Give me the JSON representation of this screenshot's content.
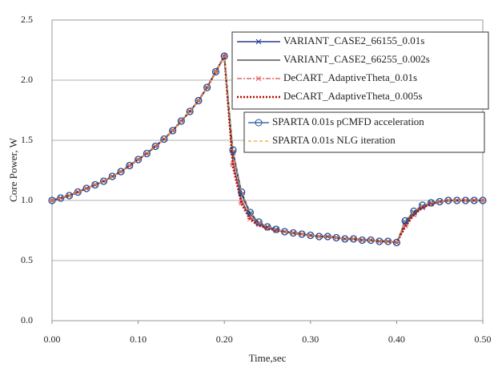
{
  "chart_data": {
    "type": "line",
    "x_label": "Time,sec",
    "y_label": "Core Power, W",
    "xlim": [
      0,
      0.5
    ],
    "ylim": [
      0,
      2.5
    ],
    "xticks": [
      {
        "value": 0,
        "label": "0.00"
      },
      {
        "value": 0.1,
        "label": "0.10"
      },
      {
        "value": 0.2,
        "label": "0.20"
      },
      {
        "value": 0.3,
        "label": "0.30"
      },
      {
        "value": 0.4,
        "label": "0.40"
      },
      {
        "value": 0.5,
        "label": "0.50"
      }
    ],
    "yticks": [
      {
        "value": 0,
        "label": "0.0"
      },
      {
        "value": 0.5,
        "label": "0.5"
      },
      {
        "value": 1,
        "label": "1.0"
      },
      {
        "value": 1.5,
        "label": "1.5"
      },
      {
        "value": 2,
        "label": "2.0"
      },
      {
        "value": 2.5,
        "label": "2.5"
      }
    ],
    "grid": true,
    "x": [
      0,
      0.01,
      0.02,
      0.03,
      0.04,
      0.05,
      0.06,
      0.07,
      0.08,
      0.09,
      0.1,
      0.11,
      0.12,
      0.13,
      0.14,
      0.15,
      0.16,
      0.17,
      0.18,
      0.19,
      0.2,
      0.21,
      0.22,
      0.23,
      0.24,
      0.25,
      0.26,
      0.27,
      0.28,
      0.29,
      0.3,
      0.31,
      0.32,
      0.33,
      0.34,
      0.35,
      0.36,
      0.37,
      0.38,
      0.39,
      0.4,
      0.41,
      0.42,
      0.43,
      0.44,
      0.45,
      0.46,
      0.47,
      0.48,
      0.49,
      0.5
    ],
    "series": [
      {
        "name": "VARIANT_CASE2_66155_0.01s",
        "color": "#2a3a8c",
        "dash": "none",
        "width": 1.5,
        "marker": "x",
        "values": [
          1.0,
          1.02,
          1.04,
          1.07,
          1.1,
          1.13,
          1.16,
          1.2,
          1.24,
          1.29,
          1.34,
          1.39,
          1.45,
          1.51,
          1.58,
          1.66,
          1.74,
          1.83,
          1.94,
          2.07,
          2.2,
          1.4,
          1.05,
          0.89,
          0.81,
          0.78,
          0.76,
          0.74,
          0.73,
          0.72,
          0.71,
          0.7,
          0.7,
          0.69,
          0.68,
          0.68,
          0.67,
          0.67,
          0.66,
          0.66,
          0.65,
          0.82,
          0.9,
          0.95,
          0.98,
          0.99,
          1.0,
          1.0,
          1.0,
          1.0,
          1.0
        ]
      },
      {
        "name": "VARIANT_CASE2_66255_0.002s",
        "color": "#555555",
        "dash": "none",
        "width": 1.5,
        "marker": null,
        "values": [
          1.0,
          1.02,
          1.04,
          1.07,
          1.1,
          1.13,
          1.16,
          1.2,
          1.24,
          1.29,
          1.34,
          1.39,
          1.45,
          1.51,
          1.58,
          1.66,
          1.74,
          1.83,
          1.94,
          2.07,
          2.2,
          1.32,
          1.0,
          0.86,
          0.8,
          0.77,
          0.75,
          0.74,
          0.73,
          0.72,
          0.71,
          0.7,
          0.7,
          0.69,
          0.68,
          0.68,
          0.67,
          0.67,
          0.66,
          0.66,
          0.65,
          0.8,
          0.89,
          0.95,
          0.98,
          0.99,
          1.0,
          1.0,
          1.0,
          1.0,
          1.0
        ]
      },
      {
        "name": "DeCART_AdaptiveTheta_0.01s",
        "color": "#e06666",
        "dash": "6 2 2 2",
        "width": 1.5,
        "marker": "x",
        "values": [
          1.0,
          1.02,
          1.04,
          1.07,
          1.1,
          1.13,
          1.16,
          1.2,
          1.24,
          1.29,
          1.34,
          1.39,
          1.45,
          1.51,
          1.58,
          1.66,
          1.74,
          1.83,
          1.94,
          2.07,
          2.2,
          1.3,
          0.98,
          0.85,
          0.8,
          0.77,
          0.75,
          0.74,
          0.73,
          0.72,
          0.71,
          0.7,
          0.7,
          0.69,
          0.68,
          0.68,
          0.67,
          0.67,
          0.66,
          0.66,
          0.65,
          0.79,
          0.88,
          0.94,
          0.97,
          0.99,
          1.0,
          1.0,
          1.0,
          1.0,
          1.0
        ]
      },
      {
        "name": "DeCART_AdaptiveTheta_0.005s",
        "color": "#c00000",
        "dash": "2 2",
        "width": 2.5,
        "marker": null,
        "values": [
          1.0,
          1.02,
          1.04,
          1.07,
          1.1,
          1.13,
          1.16,
          1.2,
          1.24,
          1.29,
          1.34,
          1.39,
          1.45,
          1.51,
          1.58,
          1.66,
          1.74,
          1.83,
          1.94,
          2.07,
          2.2,
          1.28,
          0.97,
          0.84,
          0.79,
          0.77,
          0.75,
          0.74,
          0.73,
          0.72,
          0.71,
          0.7,
          0.7,
          0.69,
          0.68,
          0.68,
          0.67,
          0.67,
          0.66,
          0.66,
          0.65,
          0.78,
          0.88,
          0.94,
          0.97,
          0.99,
          1.0,
          1.0,
          1.0,
          1.0,
          1.0
        ]
      },
      {
        "name": "SPARTA 0.01s pCMFD acceleration",
        "color": "#1f4e9a",
        "dash": "none",
        "width": 1.2,
        "marker": "circle",
        "values": [
          1.0,
          1.02,
          1.04,
          1.07,
          1.1,
          1.13,
          1.16,
          1.2,
          1.24,
          1.29,
          1.34,
          1.39,
          1.45,
          1.51,
          1.58,
          1.66,
          1.74,
          1.83,
          1.94,
          2.07,
          2.2,
          1.42,
          1.07,
          0.9,
          0.82,
          0.78,
          0.76,
          0.74,
          0.73,
          0.72,
          0.71,
          0.7,
          0.7,
          0.69,
          0.68,
          0.68,
          0.67,
          0.67,
          0.66,
          0.66,
          0.65,
          0.83,
          0.91,
          0.96,
          0.98,
          0.99,
          1.0,
          1.0,
          1.0,
          1.0,
          1.0
        ]
      },
      {
        "name": "SPARTA 0.01s NLG iteration",
        "color": "#f0a020",
        "dash": "4 3",
        "width": 1.2,
        "marker": null,
        "values": [
          1.0,
          1.02,
          1.04,
          1.07,
          1.1,
          1.13,
          1.16,
          1.2,
          1.24,
          1.29,
          1.34,
          1.39,
          1.45,
          1.51,
          1.58,
          1.66,
          1.74,
          1.83,
          1.94,
          2.07,
          2.2,
          1.42,
          1.07,
          0.9,
          0.82,
          0.78,
          0.76,
          0.74,
          0.73,
          0.72,
          0.71,
          0.7,
          0.7,
          0.69,
          0.68,
          0.68,
          0.67,
          0.67,
          0.66,
          0.66,
          0.65,
          0.83,
          0.91,
          0.96,
          0.98,
          0.99,
          1.0,
          1.0,
          1.0,
          1.0,
          1.0
        ]
      }
    ]
  }
}
